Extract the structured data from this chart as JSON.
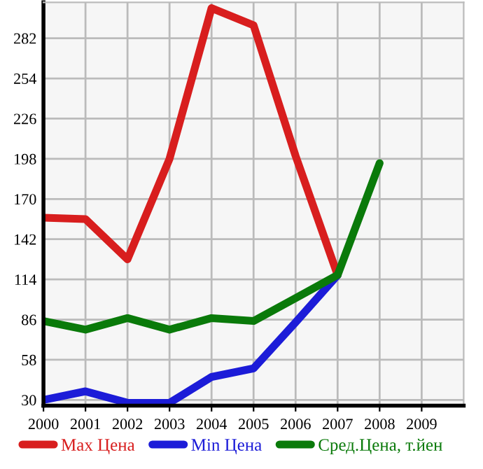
{
  "chart_data": {
    "type": "line",
    "x": [
      2000,
      2001,
      2002,
      2003,
      2004,
      2005,
      2006,
      2007,
      2008
    ],
    "series": [
      {
        "name": "Max Цена",
        "color": "#d81e1e",
        "values": [
          157,
          156,
          128,
          198,
          303,
          291,
          200,
          117,
          null
        ]
      },
      {
        "name": "Min Цена",
        "color": "#1c1cd8",
        "values": [
          30,
          36,
          28,
          28,
          46,
          52,
          84,
          117,
          null
        ]
      },
      {
        "name": "Сред.Цена, т.йен",
        "color": "#0a7a0a",
        "values": [
          85,
          79,
          87,
          79,
          87,
          85,
          101,
          117,
          195
        ]
      }
    ],
    "xlim": [
      2000,
      2010
    ],
    "xticks": [
      2000,
      2001,
      2002,
      2003,
      2004,
      2005,
      2006,
      2007,
      2008,
      2009
    ],
    "ylim": [
      26,
      307
    ],
    "yticks": [
      30,
      58,
      86,
      114,
      142,
      170,
      198,
      226,
      254,
      282
    ],
    "grid": true,
    "legend": "bottom",
    "marker": "none",
    "line_style": "solid"
  }
}
